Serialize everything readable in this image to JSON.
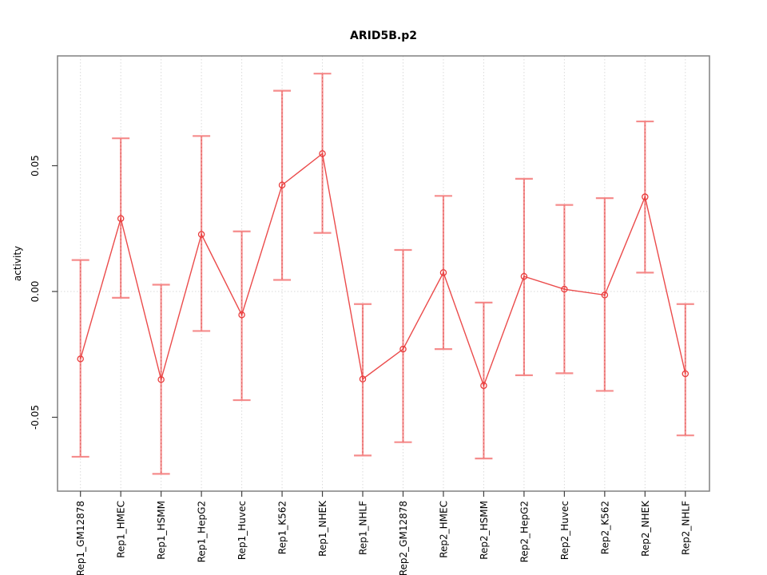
{
  "figure": {
    "title": "ARID5B.p2",
    "background": "#ffffff"
  },
  "colors": {
    "series_line": "#e93c3c",
    "marker_stroke": "#e93c3c",
    "error_bar": "#f58080",
    "error_bar_dash": "#d24444",
    "grid": "#dadada",
    "frame": "#808080",
    "tick": "#404040",
    "text": "#000000"
  },
  "chart_data": {
    "type": "line",
    "title": "ARID5B.p2",
    "xlabel": "",
    "ylabel": "activity",
    "legend": "none",
    "grid": "dotted vertical gridline at each category; dotted horizontal gridline at y=0",
    "marker": "open-circle",
    "error_bars": true,
    "ylim": [
      -0.079,
      0.094
    ],
    "yticks": [
      -0.05,
      0.0,
      0.05
    ],
    "ytick_labels": [
      "-0.05",
      "0.00",
      "0.05"
    ],
    "categories": [
      "Rep1_GM12878",
      "Rep1_HMEC",
      "Rep1_HSMM",
      "Rep1_HepG2",
      "Rep1_Huvec",
      "Rep1_K562",
      "Rep1_NHEK",
      "Rep1_NHLF",
      "Rep2_GM12878",
      "Rep2_HMEC",
      "Rep2_HSMM",
      "Rep2_HepG2",
      "Rep2_Huvec",
      "Rep2_K562",
      "Rep2_NHEK",
      "Rep2_NHLF"
    ],
    "series": [
      {
        "name": "activity",
        "values": [
          -0.0268,
          0.029,
          -0.035,
          0.0227,
          -0.0093,
          0.0423,
          0.0548,
          -0.0348,
          -0.0229,
          0.0075,
          -0.0374,
          0.006,
          0.0009,
          -0.0014,
          0.0376,
          -0.0327
        ],
        "error_high": [
          0.0125,
          0.0609,
          0.0027,
          0.0618,
          0.0239,
          0.0798,
          0.0866,
          -0.005,
          0.0165,
          0.038,
          -0.0044,
          0.0448,
          0.0344,
          0.0371,
          0.0676,
          -0.005
        ],
        "error_low": [
          -0.0657,
          -0.0025,
          -0.0725,
          -0.0157,
          -0.0432,
          0.0046,
          0.0233,
          -0.0652,
          -0.0599,
          -0.0229,
          -0.0664,
          -0.0333,
          -0.0325,
          -0.0395,
          0.0075,
          -0.0572
        ]
      }
    ]
  }
}
